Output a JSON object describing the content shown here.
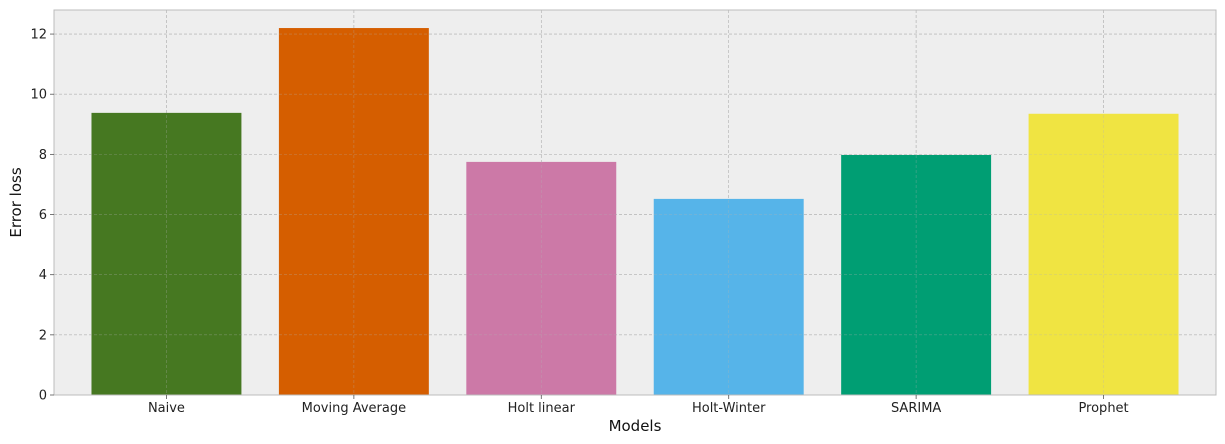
{
  "chart_data": {
    "type": "bar",
    "title": "",
    "xlabel": "Models",
    "ylabel": "Error loss",
    "categories": [
      "Naive",
      "Moving Average",
      "Holt linear",
      "Holt-Winter",
      "SARIMA",
      "Prophet"
    ],
    "values": [
      9.38,
      12.2,
      7.75,
      6.52,
      7.98,
      9.35
    ],
    "colors": [
      "#467821",
      "#D55E00",
      "#CC79A7",
      "#56B4E9",
      "#009E73",
      "#F0E442"
    ],
    "ylim": [
      0,
      12.8
    ],
    "yticks": [
      0,
      2,
      4,
      6,
      8,
      10,
      12
    ],
    "grid": true,
    "background": "#EEEEEE",
    "grid_color": "#B2B2B2"
  }
}
